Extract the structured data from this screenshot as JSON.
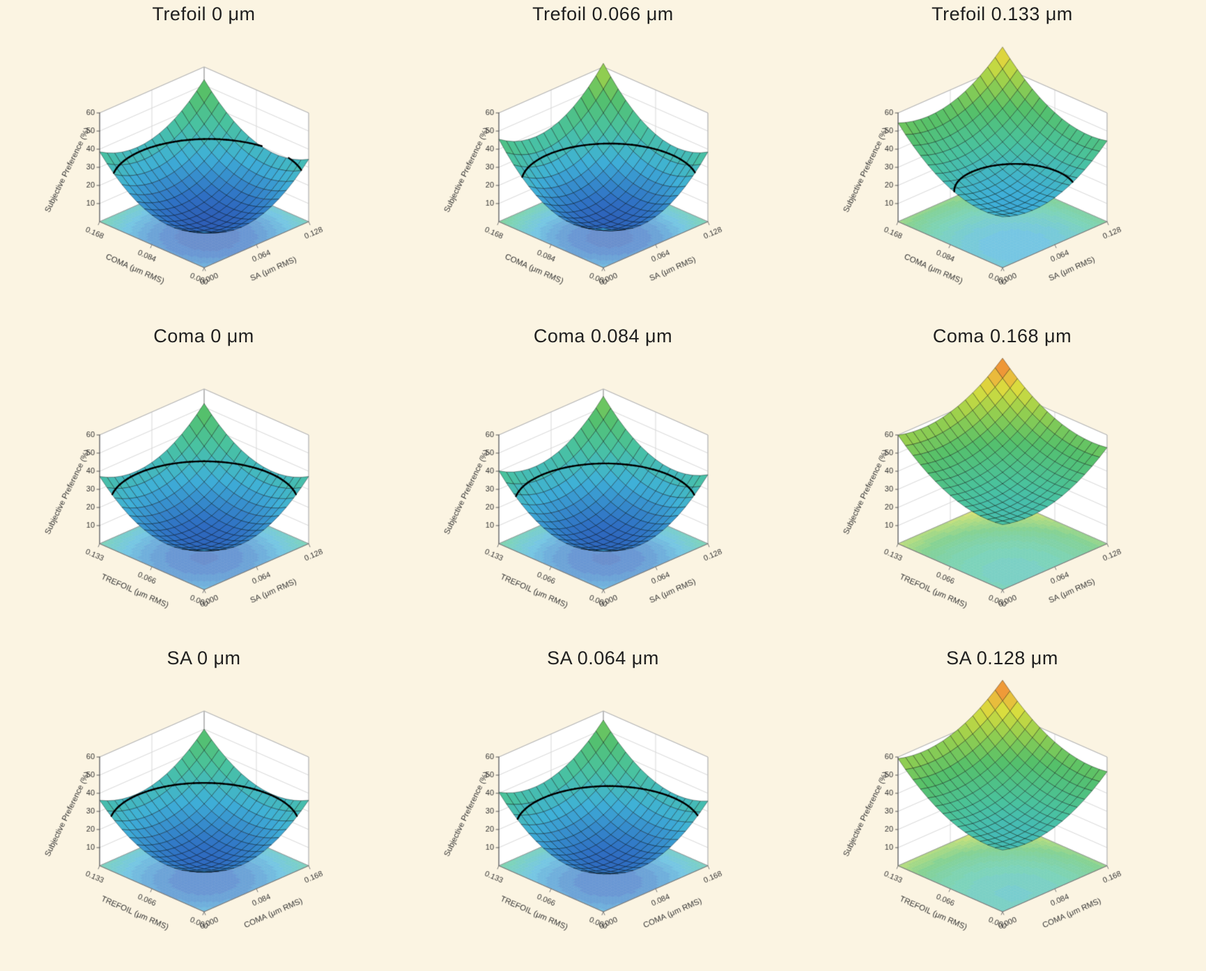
{
  "page": {
    "background": "#fbf4e2"
  },
  "style": {
    "plot_background": "#ffffff",
    "title_color": "#1f1f1f",
    "axis_text_color": "#333333",
    "wall_grid_color": "#d8d8d8",
    "wall_border_color": "#b0b0b0",
    "mesh_line_color": "rgba(0,0,0,0.55)",
    "contour_line_color": "#000000",
    "color_domain": [
      0,
      80
    ],
    "colormap": [
      {
        "t": 0.0,
        "color": "#2b3f9e"
      },
      {
        "t": 0.15,
        "color": "#2f6fc3"
      },
      {
        "t": 0.3,
        "color": "#3fb0d8"
      },
      {
        "t": 0.45,
        "color": "#49c2a0"
      },
      {
        "t": 0.6,
        "color": "#55c06a"
      },
      {
        "t": 0.72,
        "color": "#97cf4e"
      },
      {
        "t": 0.82,
        "color": "#d9dd3e"
      },
      {
        "t": 0.9,
        "color": "#f2a93b"
      },
      {
        "t": 1.0,
        "color": "#d92e20"
      }
    ]
  },
  "chart_data": [
    {
      "type": "3d-surface",
      "title": "Trefoil 0 μm",
      "left_axis": {
        "label": "COMA (μm RMS)",
        "ticks": [
          "0.000",
          "0.084",
          "0.168"
        ]
      },
      "right_axis": {
        "label": "SA (μm RMS)",
        "ticks": [
          "0.000",
          "0.064",
          "0.128"
        ]
      },
      "z_axis": {
        "label": "Subjective Preference (%)",
        "ticks": [
          10,
          20,
          30,
          40,
          50,
          60
        ],
        "max": 60
      },
      "surface": {
        "shape": "paraboloid",
        "zmin": 8,
        "zmax": 53,
        "min_u": 0.32,
        "min_v": 0.36,
        "contour_level": 30
      }
    },
    {
      "type": "3d-surface",
      "title": "Trefoil 0.066 μm",
      "left_axis": {
        "label": "COMA (μm RMS)",
        "ticks": [
          "0.000",
          "0.084",
          "0.168"
        ]
      },
      "right_axis": {
        "label": "SA (μm RMS)",
        "ticks": [
          "0.000",
          "0.064",
          "0.128"
        ]
      },
      "z_axis": {
        "label": "Subjective Preference (%)",
        "ticks": [
          10,
          20,
          30,
          40,
          50,
          60
        ],
        "max": 60
      },
      "surface": {
        "shape": "paraboloid",
        "zmin": 9,
        "zmax": 62,
        "min_u": 0.3,
        "min_v": 0.36,
        "contour_level": 30
      }
    },
    {
      "type": "3d-surface",
      "title": "Trefoil 0.133 μm",
      "left_axis": {
        "label": "COMA (μm RMS)",
        "ticks": [
          "0.000",
          "0.084",
          "0.168"
        ]
      },
      "right_axis": {
        "label": "SA (μm RMS)",
        "ticks": [
          "0.000",
          "0.064",
          "0.128"
        ]
      },
      "z_axis": {
        "label": "Subjective Preference (%)",
        "ticks": [
          10,
          20,
          30,
          40,
          50,
          60
        ],
        "max": 60
      },
      "surface": {
        "shape": "paraboloid",
        "zmin": 23,
        "zmax": 71,
        "min_u": 0.18,
        "min_v": 0.3,
        "contour_level": 30
      }
    },
    {
      "type": "3d-surface",
      "title": "Coma 0 μm",
      "left_axis": {
        "label": "TREFOIL (μm RMS)",
        "ticks": [
          "0.000",
          "0.066",
          "0.133"
        ]
      },
      "right_axis": {
        "label": "SA (μm RMS)",
        "ticks": [
          "0.000",
          "0.064",
          "0.128"
        ]
      },
      "z_axis": {
        "label": "Subjective Preference (%)",
        "ticks": [
          10,
          20,
          30,
          40,
          50,
          60
        ],
        "max": 60
      },
      "surface": {
        "shape": "paraboloid",
        "zmin": 10,
        "zmax": 52,
        "min_u": 0.35,
        "min_v": 0.35,
        "contour_level": 30
      }
    },
    {
      "type": "3d-surface",
      "title": "Coma 0.084 μm",
      "left_axis": {
        "label": "TREFOIL (μm RMS)",
        "ticks": [
          "0.000",
          "0.066",
          "0.133"
        ]
      },
      "right_axis": {
        "label": "SA (μm RMS)",
        "ticks": [
          "0.000",
          "0.064",
          "0.128"
        ]
      },
      "z_axis": {
        "label": "Subjective Preference (%)",
        "ticks": [
          10,
          20,
          30,
          40,
          50,
          60
        ],
        "max": 60
      },
      "surface": {
        "shape": "paraboloid",
        "zmin": 10,
        "zmax": 56,
        "min_u": 0.33,
        "min_v": 0.35,
        "contour_level": 30
      }
    },
    {
      "type": "3d-surface",
      "title": "Coma 0.168 μm",
      "left_axis": {
        "label": "TREFOIL (μm RMS)",
        "ticks": [
          "0.000",
          "0.066",
          "0.133"
        ]
      },
      "right_axis": {
        "label": "SA (μm RMS)",
        "ticks": [
          "0.000",
          "0.064",
          "0.128"
        ]
      },
      "z_axis": {
        "label": "Subjective Preference (%)",
        "ticks": [
          10,
          20,
          30,
          40,
          50,
          60
        ],
        "max": 60
      },
      "surface": {
        "shape": "paraboloid",
        "zmin": 33,
        "zmax": 77,
        "min_u": 0.15,
        "min_v": 0.25,
        "contour_level": 30
      }
    },
    {
      "type": "3d-surface",
      "title": "SA 0 μm",
      "left_axis": {
        "label": "TREFOIL (μm RMS)",
        "ticks": [
          "0.000",
          "0.066",
          "0.133"
        ]
      },
      "right_axis": {
        "label": "COMA (μm RMS)",
        "ticks": [
          "0.000",
          "0.084",
          "0.168"
        ]
      },
      "z_axis": {
        "label": "Subjective Preference (%)",
        "ticks": [
          10,
          20,
          30,
          40,
          50,
          60
        ],
        "max": 60
      },
      "surface": {
        "shape": "paraboloid",
        "zmin": 11,
        "zmax": 50,
        "min_u": 0.35,
        "min_v": 0.35,
        "contour_level": 30
      }
    },
    {
      "type": "3d-surface",
      "title": "SA 0.064 μm",
      "left_axis": {
        "label": "TREFOIL (μm RMS)",
        "ticks": [
          "0.000",
          "0.066",
          "0.133"
        ]
      },
      "right_axis": {
        "label": "COMA (μm RMS)",
        "ticks": [
          "0.000",
          "0.084",
          "0.168"
        ]
      },
      "z_axis": {
        "label": "Subjective Preference (%)",
        "ticks": [
          10,
          20,
          30,
          40,
          50,
          60
        ],
        "max": 60
      },
      "surface": {
        "shape": "paraboloid",
        "zmin": 11,
        "zmax": 55,
        "min_u": 0.3,
        "min_v": 0.35,
        "contour_level": 30
      }
    },
    {
      "type": "3d-surface",
      "title": "SA 0.128 μm",
      "left_axis": {
        "label": "TREFOIL (μm RMS)",
        "ticks": [
          "0.000",
          "0.066",
          "0.133"
        ]
      },
      "right_axis": {
        "label": "COMA (μm RMS)",
        "ticks": [
          "0.000",
          "0.084",
          "0.168"
        ]
      },
      "z_axis": {
        "label": "Subjective Preference (%)",
        "ticks": [
          10,
          20,
          30,
          40,
          50,
          60
        ],
        "max": 60
      },
      "surface": {
        "shape": "paraboloid",
        "zmin": 31,
        "zmax": 77,
        "min_u": 0.15,
        "min_v": 0.25,
        "contour_level": 30
      }
    }
  ]
}
